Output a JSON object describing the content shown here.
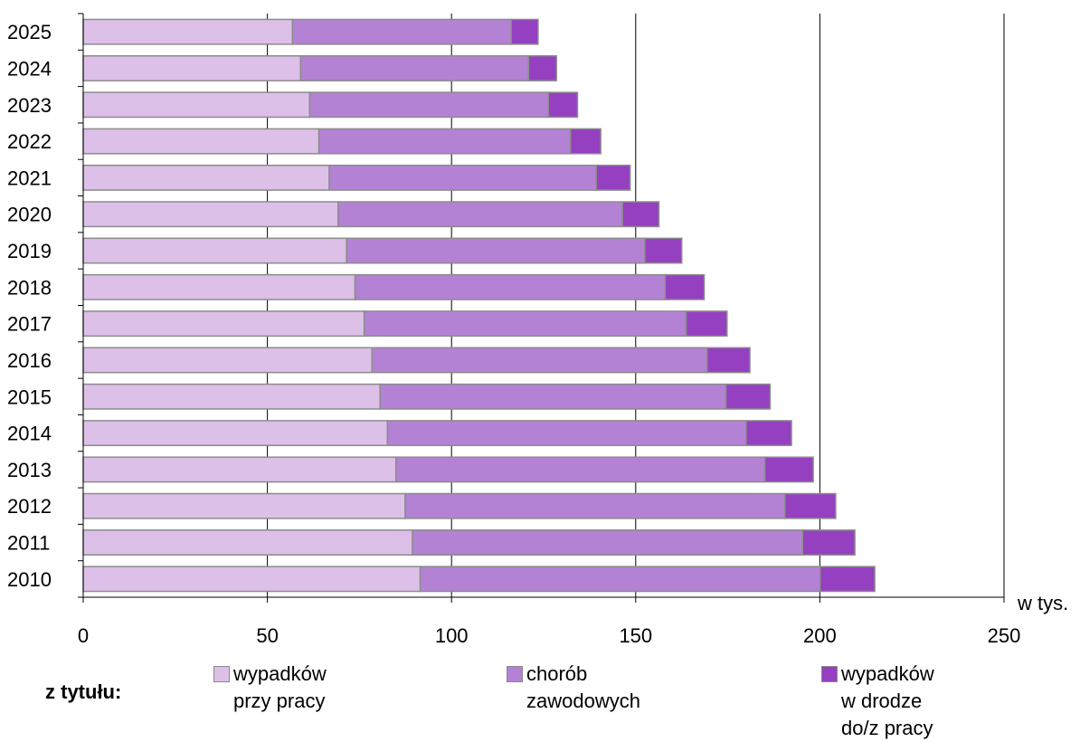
{
  "chart_data": {
    "type": "bar",
    "orientation": "horizontal",
    "stacked": true,
    "categories": [
      "2010",
      "2011",
      "2012",
      "2013",
      "2014",
      "2015",
      "2016",
      "2017",
      "2018",
      "2019",
      "2020",
      "2021",
      "2022",
      "2023",
      "2024",
      "2025"
    ],
    "series": [
      {
        "name": "wypadków\nprzy pracy",
        "color": "#dcc0e8",
        "values": [
          91.5,
          89.4,
          87.4,
          84.9,
          82.6,
          80.6,
          78.4,
          76.3,
          73.8,
          71.5,
          69.2,
          66.8,
          64.0,
          61.5,
          59.0,
          56.8
        ]
      },
      {
        "name": "chorób\nzawodowych",
        "color": "#b482d4",
        "values": [
          108.6,
          105.9,
          103.1,
          100.2,
          97.4,
          93.9,
          91.0,
          87.4,
          84.2,
          81.0,
          77.2,
          72.5,
          68.3,
          64.8,
          61.9,
          59.4
        ]
      },
      {
        "name": "wypadków\nw drodze\ndo/z pracy",
        "color": "#9440c0",
        "values": [
          14.8,
          14.2,
          13.8,
          13.1,
          12.3,
          12.0,
          11.6,
          11.1,
          10.6,
          10.0,
          9.9,
          9.2,
          8.2,
          7.9,
          7.6,
          7.3
        ]
      }
    ],
    "xlim": [
      0,
      250
    ],
    "xticks": [
      "0",
      "50",
      "100",
      "150",
      "200",
      "250"
    ],
    "unit_label": "w  tys.",
    "grid": "vertical-major",
    "legend_title": "z tytułu:",
    "legend_position": "bottom"
  }
}
